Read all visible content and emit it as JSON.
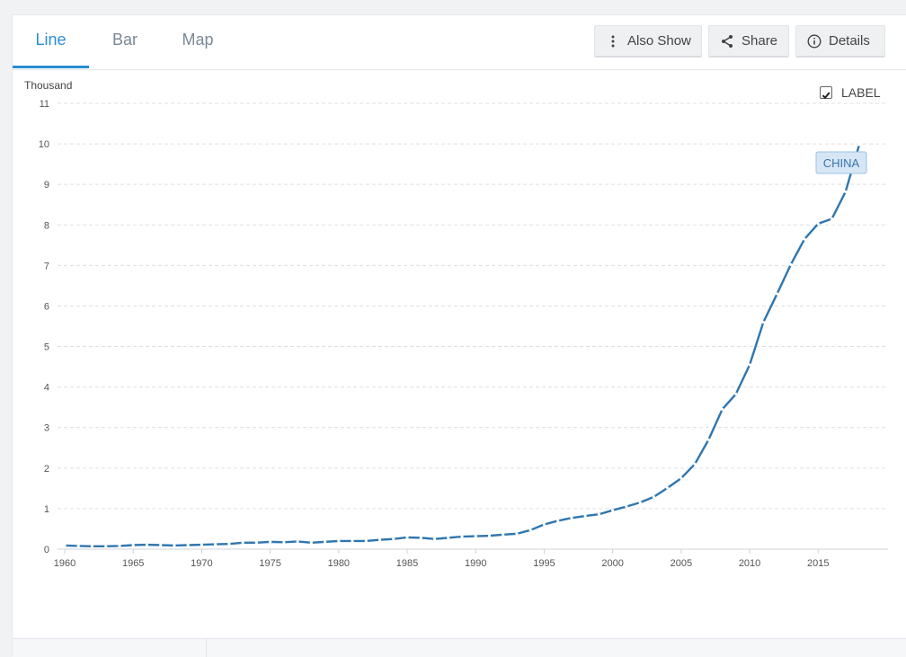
{
  "tabs": [
    {
      "label": "Line",
      "active": true
    },
    {
      "label": "Bar",
      "active": false
    },
    {
      "label": "Map",
      "active": false
    }
  ],
  "toolbar": {
    "also_show_label": "Also Show",
    "also_show_icon": "vertical-dots-icon",
    "share_label": "Share",
    "share_icon": "share-icon",
    "details_label": "Details",
    "details_icon": "info-icon"
  },
  "label_toggle": {
    "text": "LABEL",
    "checked": true
  },
  "colors": {
    "accent": "#2a8dd4",
    "series": "#2e76b0",
    "tag_bg": "#d6e6f5",
    "tag_border": "#9cc2e4"
  },
  "chart_data": {
    "type": "line",
    "ylabel": "Thousand",
    "ylim": [
      0,
      11
    ],
    "xlim": [
      1960,
      2018
    ],
    "yticks": [
      0,
      1,
      2,
      3,
      4,
      5,
      6,
      7,
      8,
      9,
      10,
      11
    ],
    "xticks": [
      1960,
      1965,
      1970,
      1975,
      1980,
      1985,
      1990,
      1995,
      2000,
      2005,
      2010,
      2015
    ],
    "grid": true,
    "series": [
      {
        "name": "CHINA",
        "x": [
          1960,
          1961,
          1962,
          1963,
          1964,
          1965,
          1966,
          1967,
          1968,
          1969,
          1970,
          1971,
          1972,
          1973,
          1974,
          1975,
          1976,
          1977,
          1978,
          1979,
          1980,
          1981,
          1982,
          1983,
          1984,
          1985,
          1986,
          1987,
          1988,
          1989,
          1990,
          1991,
          1992,
          1993,
          1994,
          1995,
          1996,
          1997,
          1998,
          1999,
          2000,
          2001,
          2002,
          2003,
          2004,
          2005,
          2006,
          2007,
          2008,
          2009,
          2010,
          2011,
          2012,
          2013,
          2014,
          2015,
          2016,
          2017,
          2018
        ],
        "values": [
          0.09,
          0.08,
          0.07,
          0.07,
          0.08,
          0.1,
          0.11,
          0.1,
          0.09,
          0.1,
          0.11,
          0.12,
          0.13,
          0.16,
          0.16,
          0.18,
          0.17,
          0.19,
          0.16,
          0.18,
          0.2,
          0.2,
          0.2,
          0.23,
          0.25,
          0.29,
          0.28,
          0.25,
          0.28,
          0.31,
          0.32,
          0.33,
          0.36,
          0.38,
          0.47,
          0.61,
          0.7,
          0.77,
          0.82,
          0.86,
          0.96,
          1.05,
          1.15,
          1.29,
          1.51,
          1.75,
          2.1,
          2.7,
          3.45,
          3.83,
          4.55,
          5.6,
          6.3,
          7.02,
          7.65,
          8.03,
          8.15,
          8.82,
          9.98
        ]
      }
    ]
  }
}
